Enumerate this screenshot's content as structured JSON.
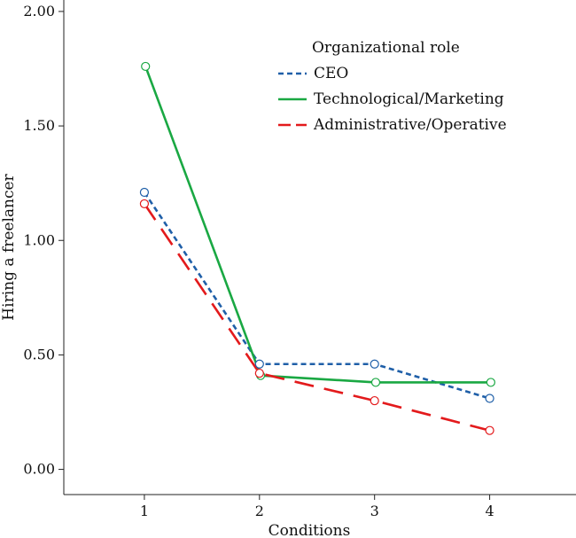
{
  "chart_data": {
    "type": "line",
    "xlabel": "Conditions",
    "ylabel": "Hiring a freelancer",
    "x": [
      1,
      2,
      3,
      4
    ],
    "xlim": [
      0.3,
      4.75
    ],
    "ylim": [
      -0.11,
      2.05
    ],
    "xticks": [
      1,
      2,
      3,
      4
    ],
    "yticks": [
      0.0,
      0.5,
      1.0,
      1.5,
      2.0
    ],
    "ytick_labels": [
      "0.00",
      "0.50",
      "1.00",
      "1.50",
      "2.00"
    ],
    "grid": false,
    "legend": {
      "title": "Organizational role",
      "position": "top-right"
    },
    "series": [
      {
        "name": "CEO",
        "values": [
          1.21,
          0.46,
          0.46,
          0.31
        ],
        "color": "#1f5fa8",
        "dash": "short-dash",
        "x_offset": 0
      },
      {
        "name": "Technological/Marketing",
        "values": [
          1.76,
          0.41,
          0.38,
          0.38
        ],
        "color": "#1aa843",
        "dash": "solid",
        "x_offset": 0.01
      },
      {
        "name": "Administrative/Operative",
        "values": [
          1.16,
          0.42,
          0.3,
          0.17
        ],
        "color": "#e31a1c",
        "dash": "long-dash",
        "x_offset": 0
      }
    ]
  }
}
